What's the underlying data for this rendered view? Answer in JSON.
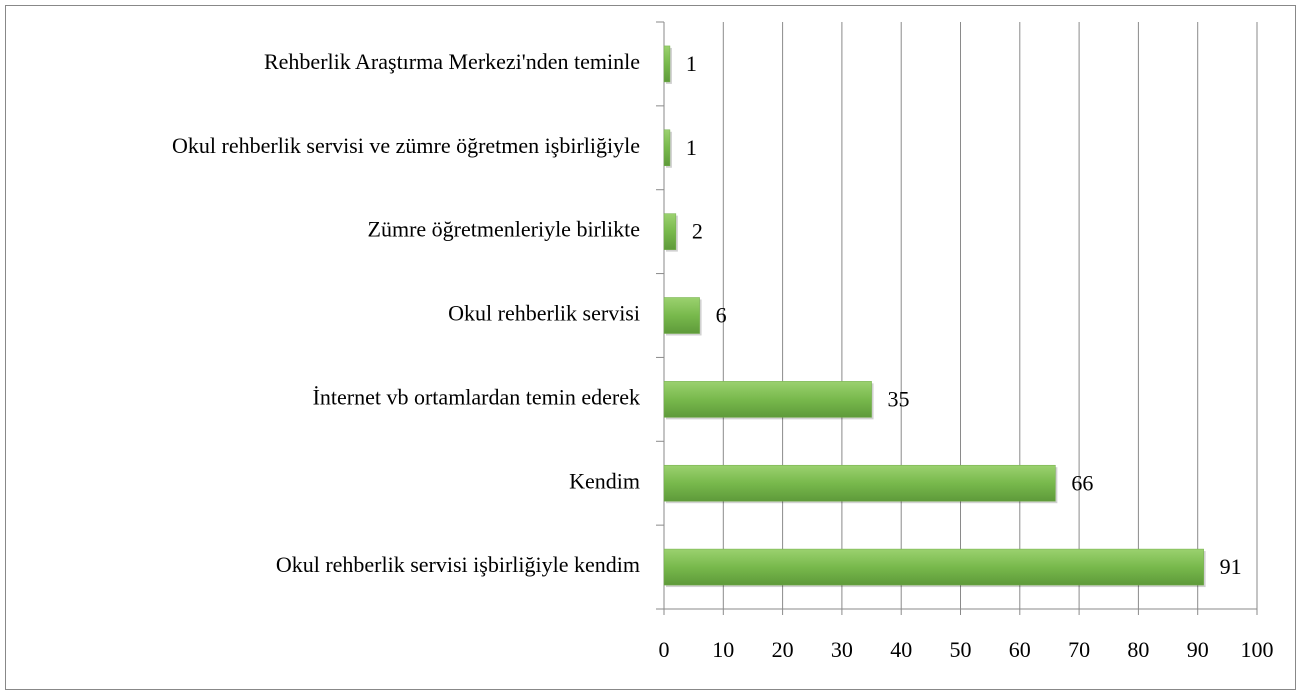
{
  "chart_data": {
    "type": "bar",
    "orientation": "horizontal",
    "categories": [
      "Rehberlik Araştırma Merkezi'nden teminle",
      "Okul rehberlik servisi ve zümre öğretmen işbirliğiyle",
      "Zümre öğretmenleriyle birlikte",
      "Okul rehberlik servisi",
      "İnternet vb ortamlardan temin ederek",
      "Kendim",
      "Okul rehberlik servisi işbirliğiyle kendim"
    ],
    "values": [
      1,
      1,
      2,
      6,
      35,
      66,
      91
    ],
    "color": "#70ad47",
    "xlim": [
      0,
      100
    ],
    "xticks": [
      0,
      10,
      20,
      30,
      40,
      50,
      60,
      70,
      80,
      90,
      100
    ],
    "grid": true
  }
}
